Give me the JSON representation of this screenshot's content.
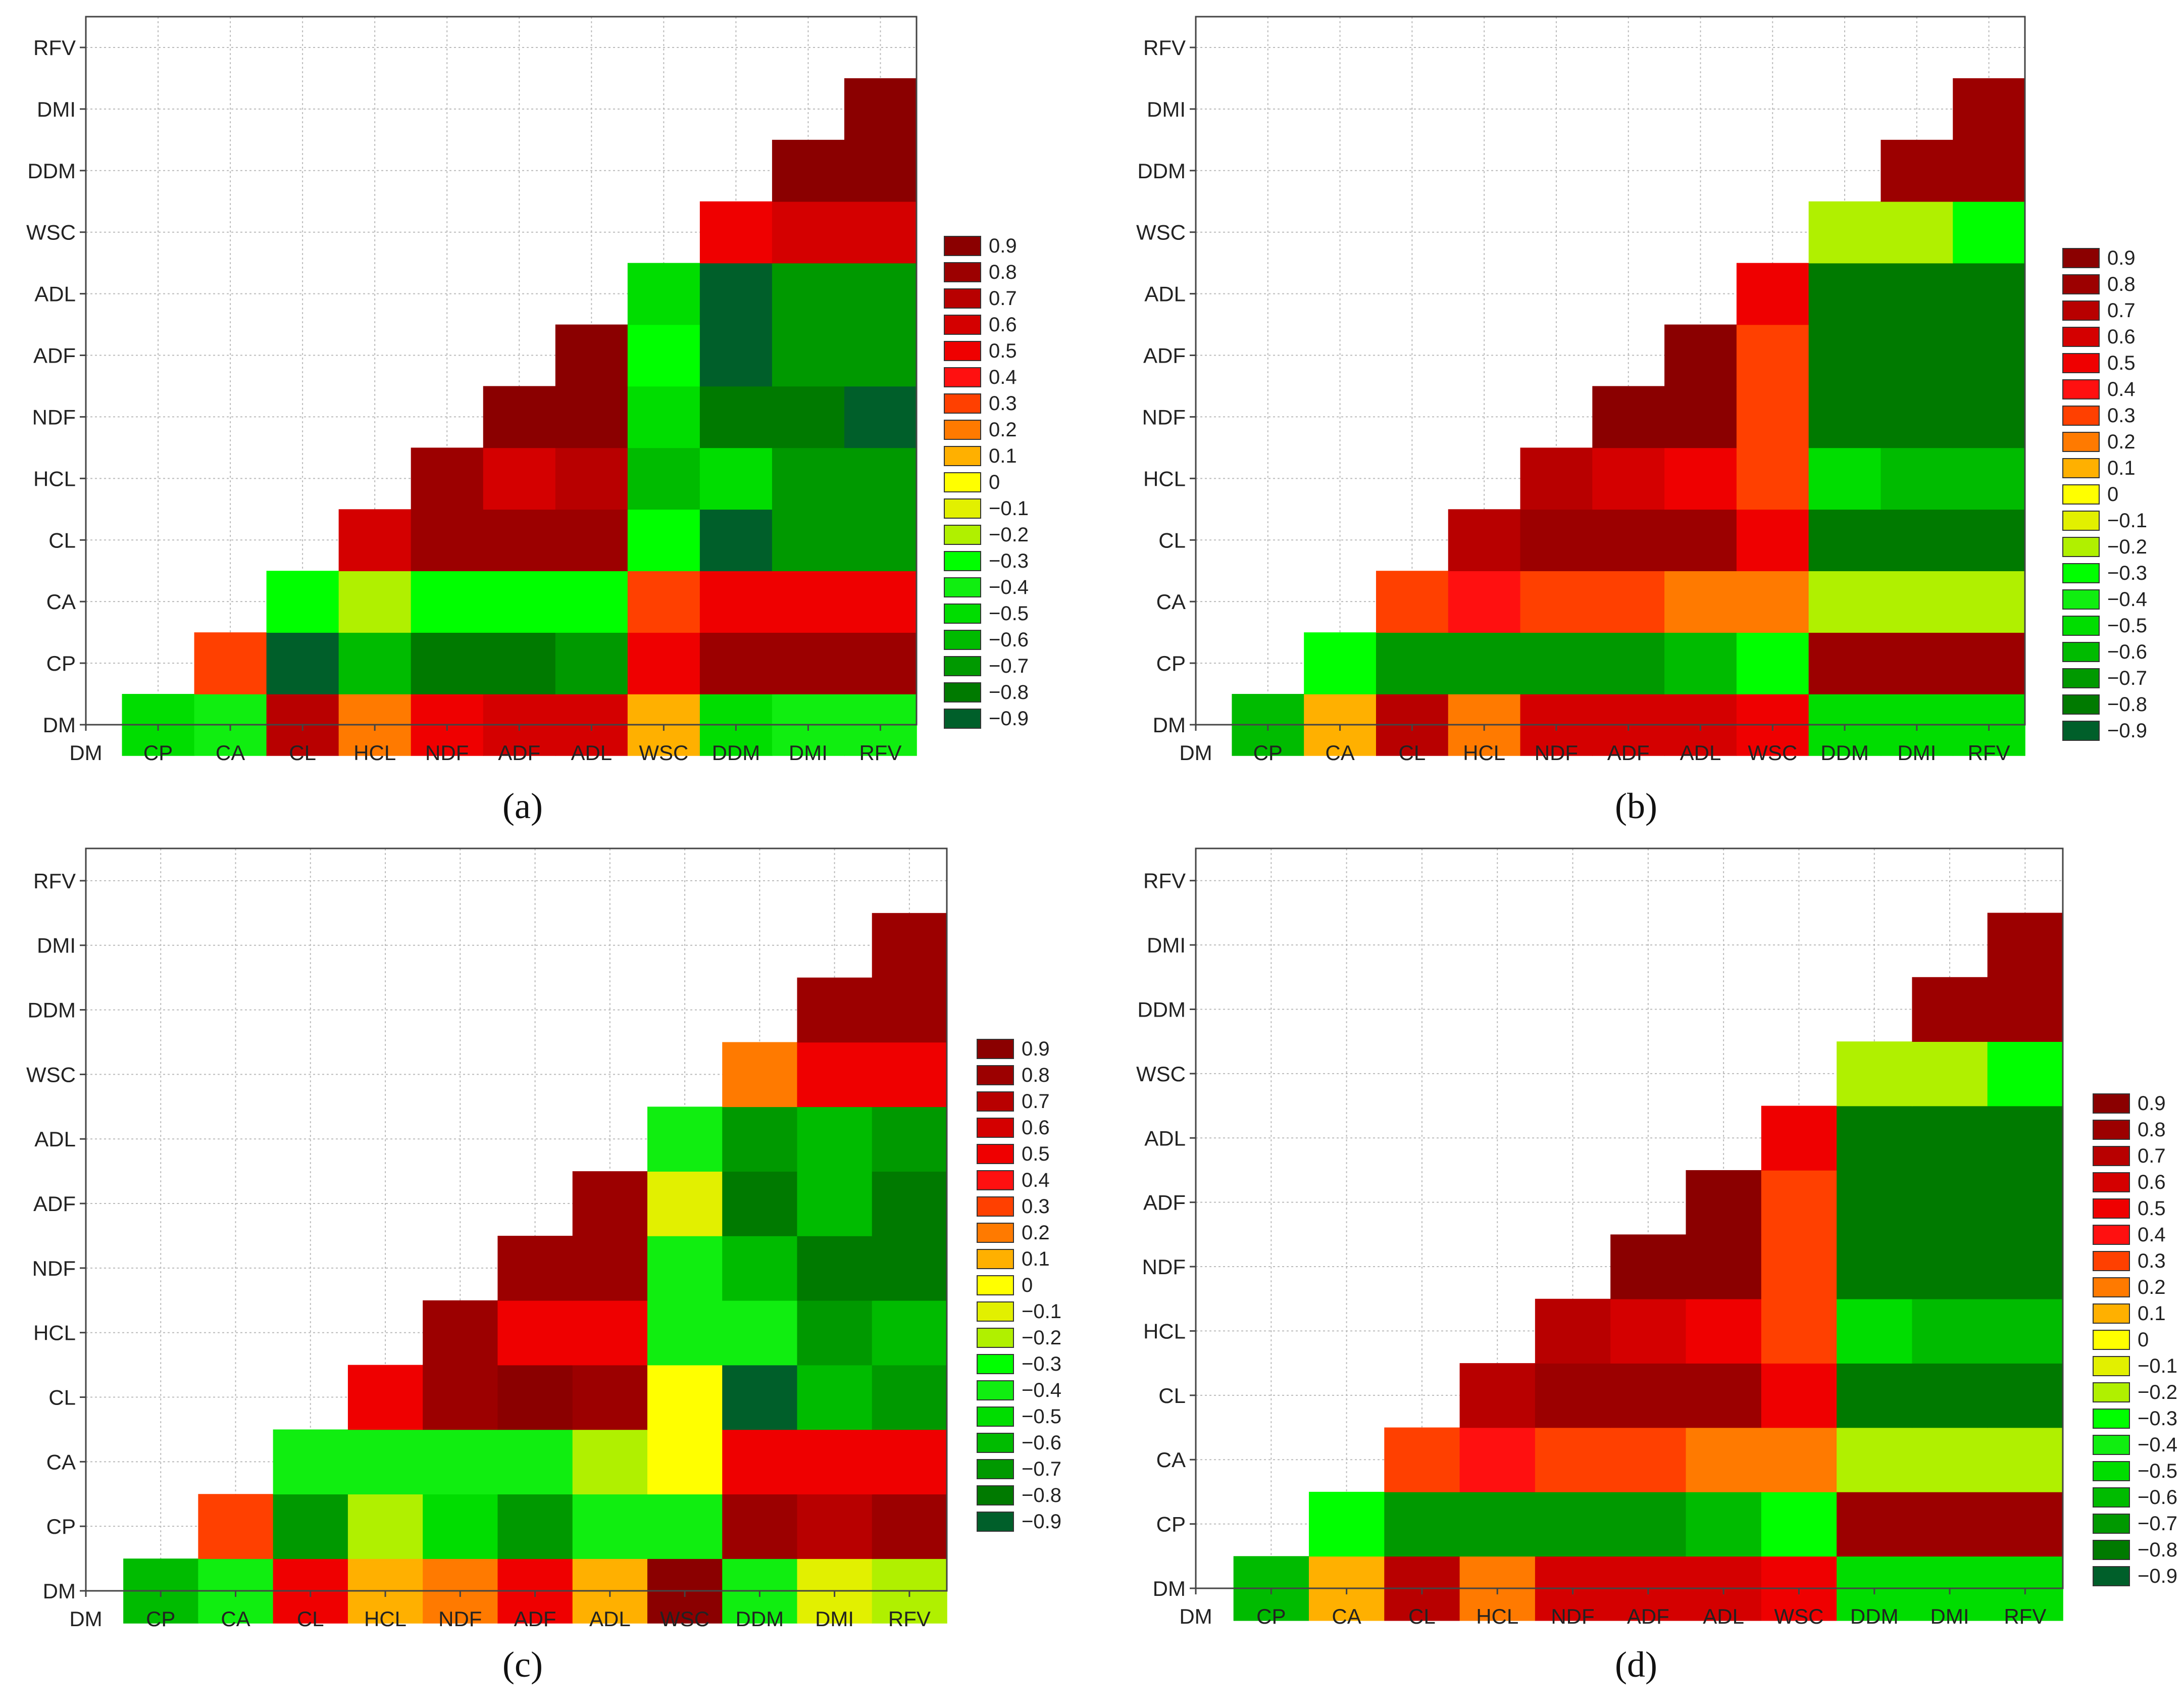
{
  "figure": {
    "variables": [
      "DM",
      "CP",
      "CA",
      "CL",
      "HCL",
      "NDF",
      "ADF",
      "ADL",
      "WSC",
      "DDM",
      "DMI",
      "RFV"
    ],
    "legend_ticks": [
      "0.9",
      "0.8",
      "0.7",
      "0.6",
      "0.5",
      "0.4",
      "0.3",
      "0.2",
      "0.1",
      "0",
      "−0.1",
      "−0.2",
      "−0.3",
      "−0.4",
      "−0.5",
      "−0.6",
      "−0.7",
      "−0.8",
      "−0.9"
    ],
    "colors": {
      "0.9": "#8b0000",
      "0.8": "#9c0000",
      "0.7": "#b80000",
      "0.6": "#d40000",
      "0.5": "#ef0000",
      "0.4": "#ff1010",
      "0.3": "#ff4000",
      "0.2": "#ff7a00",
      "0.1": "#ffb000",
      "0": "#ffff00",
      "-0.1": "#e2f000",
      "-0.2": "#b0f000",
      "-0.3": "#00ff00",
      "-0.4": "#10ee10",
      "-0.5": "#00dd00",
      "-0.6": "#00bb00",
      "-0.7": "#009900",
      "-0.8": "#007a00",
      "-0.9": "#005f2a"
    },
    "grid": "on"
  },
  "chart_data": [
    {
      "type": "heatmap",
      "title": "(a)",
      "x": [
        "DM",
        "CP",
        "CA",
        "CL",
        "HCL",
        "NDF",
        "ADF",
        "ADL",
        "WSC",
        "DDM",
        "DMI",
        "RFV"
      ],
      "y": [
        "DM",
        "CP",
        "CA",
        "CL",
        "HCL",
        "NDF",
        "ADF",
        "ADL",
        "WSC",
        "DDM",
        "DMI",
        "RFV"
      ],
      "values": [
        [
          null,
          -0.5,
          -0.4,
          0.7,
          0.2,
          0.5,
          0.6,
          0.6,
          0.1,
          -0.5,
          -0.4,
          -0.4
        ],
        [
          null,
          null,
          0.3,
          -0.9,
          -0.6,
          -0.8,
          -0.8,
          -0.7,
          0.5,
          0.8,
          0.8,
          0.8
        ],
        [
          null,
          null,
          null,
          -0.3,
          -0.2,
          -0.3,
          -0.3,
          -0.3,
          0.3,
          0.5,
          0.5,
          0.5
        ],
        [
          null,
          null,
          null,
          null,
          0.6,
          0.8,
          0.8,
          0.8,
          -0.3,
          -0.9,
          -0.7,
          -0.7
        ],
        [
          null,
          null,
          null,
          null,
          null,
          0.8,
          0.6,
          0.7,
          -0.6,
          -0.5,
          -0.7,
          -0.7
        ],
        [
          null,
          null,
          null,
          null,
          null,
          null,
          0.9,
          0.9,
          -0.5,
          -0.8,
          -0.8,
          -0.9
        ],
        [
          null,
          null,
          null,
          null,
          null,
          null,
          null,
          0.9,
          -0.3,
          -0.9,
          -0.7,
          -0.7
        ],
        [
          null,
          null,
          null,
          null,
          null,
          null,
          null,
          null,
          -0.5,
          -0.9,
          -0.7,
          -0.7
        ],
        [
          null,
          null,
          null,
          null,
          null,
          null,
          null,
          null,
          null,
          0.5,
          0.6,
          0.6
        ],
        [
          null,
          null,
          null,
          null,
          null,
          null,
          null,
          null,
          null,
          null,
          0.9,
          0.9
        ],
        [
          null,
          null,
          null,
          null,
          null,
          null,
          null,
          null,
          null,
          null,
          null,
          0.9
        ],
        [
          null,
          null,
          null,
          null,
          null,
          null,
          null,
          null,
          null,
          null,
          null,
          null
        ]
      ]
    },
    {
      "type": "heatmap",
      "title": "(b)",
      "x": [
        "DM",
        "CP",
        "CA",
        "CL",
        "HCL",
        "NDF",
        "ADF",
        "ADL",
        "WSC",
        "DDM",
        "DMI",
        "RFV"
      ],
      "y": [
        "DM",
        "CP",
        "CA",
        "CL",
        "HCL",
        "NDF",
        "ADF",
        "ADL",
        "WSC",
        "DDM",
        "DMI",
        "RFV"
      ],
      "values": [
        [
          null,
          -0.6,
          0.1,
          0.7,
          0.2,
          0.6,
          0.6,
          0.6,
          0.5,
          -0.5,
          -0.5,
          -0.5
        ],
        [
          null,
          null,
          -0.3,
          -0.7,
          -0.7,
          -0.7,
          -0.7,
          -0.6,
          -0.3,
          0.8,
          0.8,
          0.8
        ],
        [
          null,
          null,
          null,
          0.3,
          0.4,
          0.3,
          0.3,
          0.2,
          0.2,
          -0.2,
          -0.2,
          -0.2
        ],
        [
          null,
          null,
          null,
          null,
          0.7,
          0.8,
          0.8,
          0.8,
          0.5,
          -0.8,
          -0.8,
          -0.8
        ],
        [
          null,
          null,
          null,
          null,
          null,
          0.7,
          0.6,
          0.5,
          0.3,
          -0.5,
          -0.6,
          -0.6
        ],
        [
          null,
          null,
          null,
          null,
          null,
          null,
          0.9,
          0.9,
          0.3,
          -0.8,
          -0.8,
          -0.8
        ],
        [
          null,
          null,
          null,
          null,
          null,
          null,
          null,
          0.9,
          0.3,
          -0.8,
          -0.8,
          -0.8
        ],
        [
          null,
          null,
          null,
          null,
          null,
          null,
          null,
          null,
          0.5,
          -0.8,
          -0.8,
          -0.8
        ],
        [
          null,
          null,
          null,
          null,
          null,
          null,
          null,
          null,
          null,
          -0.2,
          -0.2,
          -0.3
        ],
        [
          null,
          null,
          null,
          null,
          null,
          null,
          null,
          null,
          null,
          null,
          0.8,
          0.8
        ],
        [
          null,
          null,
          null,
          null,
          null,
          null,
          null,
          null,
          null,
          null,
          null,
          0.8
        ],
        [
          null,
          null,
          null,
          null,
          null,
          null,
          null,
          null,
          null,
          null,
          null,
          null
        ]
      ]
    },
    {
      "type": "heatmap",
      "title": "(c)",
      "x": [
        "DM",
        "CP",
        "CA",
        "CL",
        "HCL",
        "NDF",
        "ADF",
        "ADL",
        "WSC",
        "DDM",
        "DMI",
        "RFV"
      ],
      "y": [
        "DM",
        "CP",
        "CA",
        "CL",
        "HCL",
        "NDF",
        "ADF",
        "ADL",
        "WSC",
        "DDM",
        "DMI",
        "RFV"
      ],
      "values": [
        [
          null,
          -0.6,
          -0.4,
          0.5,
          0.1,
          0.2,
          0.5,
          0.1,
          0.9,
          -0.4,
          -0.1,
          -0.2
        ],
        [
          null,
          null,
          0.3,
          -0.7,
          -0.2,
          -0.5,
          -0.7,
          -0.4,
          -0.4,
          0.8,
          0.7,
          0.8
        ],
        [
          null,
          null,
          null,
          -0.4,
          -0.4,
          -0.4,
          -0.4,
          -0.2,
          0,
          0.5,
          0.5,
          0.5
        ],
        [
          null,
          null,
          null,
          null,
          0.5,
          0.8,
          0.9,
          0.8,
          0,
          -0.9,
          -0.6,
          -0.7
        ],
        [
          null,
          null,
          null,
          null,
          null,
          0.8,
          0.5,
          0.5,
          -0.4,
          -0.4,
          -0.7,
          -0.6
        ],
        [
          null,
          null,
          null,
          null,
          null,
          null,
          0.8,
          0.8,
          -0.4,
          -0.6,
          -0.8,
          -0.8
        ],
        [
          null,
          null,
          null,
          null,
          null,
          null,
          null,
          0.8,
          -0.1,
          -0.8,
          -0.6,
          -0.8
        ],
        [
          null,
          null,
          null,
          null,
          null,
          null,
          null,
          null,
          -0.4,
          -0.7,
          -0.6,
          -0.7
        ],
        [
          null,
          null,
          null,
          null,
          null,
          null,
          null,
          null,
          null,
          0.2,
          0.5,
          0.5
        ],
        [
          null,
          null,
          null,
          null,
          null,
          null,
          null,
          null,
          null,
          null,
          0.8,
          0.8
        ],
        [
          null,
          null,
          null,
          null,
          null,
          null,
          null,
          null,
          null,
          null,
          null,
          0.8
        ],
        [
          null,
          null,
          null,
          null,
          null,
          null,
          null,
          null,
          null,
          null,
          null,
          null
        ]
      ]
    },
    {
      "type": "heatmap",
      "title": "(d)",
      "x": [
        "DM",
        "CP",
        "CA",
        "CL",
        "HCL",
        "NDF",
        "ADF",
        "ADL",
        "WSC",
        "DDM",
        "DMI",
        "RFV"
      ],
      "y": [
        "DM",
        "CP",
        "CA",
        "CL",
        "HCL",
        "NDF",
        "ADF",
        "ADL",
        "WSC",
        "DDM",
        "DMI",
        "RFV"
      ],
      "values": [
        [
          null,
          -0.6,
          0.1,
          0.7,
          0.2,
          0.6,
          0.6,
          0.6,
          0.5,
          -0.5,
          -0.5,
          -0.5
        ],
        [
          null,
          null,
          -0.3,
          -0.7,
          -0.7,
          -0.7,
          -0.7,
          -0.6,
          -0.3,
          0.8,
          0.8,
          0.8
        ],
        [
          null,
          null,
          null,
          0.3,
          0.4,
          0.3,
          0.3,
          0.2,
          0.2,
          -0.2,
          -0.2,
          -0.2
        ],
        [
          null,
          null,
          null,
          null,
          0.7,
          0.8,
          0.8,
          0.8,
          0.5,
          -0.8,
          -0.8,
          -0.8
        ],
        [
          null,
          null,
          null,
          null,
          null,
          0.7,
          0.6,
          0.5,
          0.3,
          -0.5,
          -0.6,
          -0.6
        ],
        [
          null,
          null,
          null,
          null,
          null,
          null,
          0.9,
          0.9,
          0.3,
          -0.8,
          -0.8,
          -0.8
        ],
        [
          null,
          null,
          null,
          null,
          null,
          null,
          null,
          0.9,
          0.3,
          -0.8,
          -0.8,
          -0.8
        ],
        [
          null,
          null,
          null,
          null,
          null,
          null,
          null,
          null,
          0.5,
          -0.8,
          -0.8,
          -0.8
        ],
        [
          null,
          null,
          null,
          null,
          null,
          null,
          null,
          null,
          null,
          -0.2,
          -0.2,
          -0.3
        ],
        [
          null,
          null,
          null,
          null,
          null,
          null,
          null,
          null,
          null,
          null,
          0.8,
          0.8
        ],
        [
          null,
          null,
          null,
          null,
          null,
          null,
          null,
          null,
          null,
          null,
          null,
          0.8
        ],
        [
          null,
          null,
          null,
          null,
          null,
          null,
          null,
          null,
          null,
          null,
          null,
          null
        ]
      ]
    }
  ]
}
